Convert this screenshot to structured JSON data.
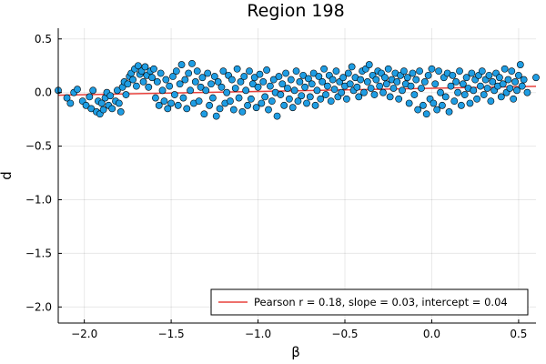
{
  "chart_data": {
    "type": "scatter",
    "title": "Region 198",
    "xlabel": "β",
    "ylabel": "d",
    "xlim": [
      -2.15,
      0.6
    ],
    "ylim": [
      -2.15,
      0.6
    ],
    "x_ticks": [
      -2.0,
      -1.5,
      -1.0,
      -0.5,
      0.0,
      0.5
    ],
    "x_tick_labels": [
      "−2.0",
      "−1.5",
      "−1.0",
      "−0.5",
      "0.0",
      "0.5"
    ],
    "y_ticks": [
      -2.0,
      -1.5,
      -1.0,
      -0.5,
      0.0,
      0.5
    ],
    "y_tick_labels": [
      "−2.0",
      "−1.5",
      "−1.0",
      "−0.5",
      "0.0",
      "0.5"
    ],
    "grid": true,
    "legend_position": "bottom-right",
    "point_color": "#1f9de3",
    "line_color": "#e8413c",
    "series": [
      {
        "type": "scatter",
        "points": [
          [
            -2.15,
            0.02
          ],
          [
            -2.1,
            -0.05
          ],
          [
            -2.08,
            -0.1
          ],
          [
            -2.06,
            0.0
          ],
          [
            -2.04,
            0.03
          ],
          [
            -2.01,
            -0.08
          ],
          [
            -1.99,
            -0.12
          ],
          [
            -1.97,
            -0.04
          ],
          [
            -1.96,
            -0.15
          ],
          [
            -1.95,
            0.02
          ],
          [
            -1.93,
            -0.18
          ],
          [
            -1.92,
            -0.08
          ],
          [
            -1.91,
            -0.2
          ],
          [
            -1.9,
            -0.1
          ],
          [
            -1.89,
            -0.16
          ],
          [
            -1.88,
            -0.05
          ],
          [
            -1.87,
            0.0
          ],
          [
            -1.86,
            -0.12
          ],
          [
            -1.85,
            -0.03
          ],
          [
            -1.84,
            -0.15
          ],
          [
            -1.82,
            -0.08
          ],
          [
            -1.81,
            0.02
          ],
          [
            -1.8,
            -0.1
          ],
          [
            -1.79,
            -0.18
          ],
          [
            -1.78,
            0.05
          ],
          [
            -1.77,
            0.1
          ],
          [
            -1.76,
            -0.02
          ],
          [
            -1.75,
            0.08
          ],
          [
            -1.74,
            0.15
          ],
          [
            -1.73,
            0.18
          ],
          [
            -1.72,
            0.12
          ],
          [
            -1.71,
            0.22
          ],
          [
            -1.7,
            0.06
          ],
          [
            -1.69,
            0.25
          ],
          [
            -1.68,
            0.17
          ],
          [
            -1.67,
            0.2
          ],
          [
            -1.66,
            0.1
          ],
          [
            -1.65,
            0.24
          ],
          [
            -1.64,
            0.16
          ],
          [
            -1.63,
            0.05
          ],
          [
            -1.62,
            0.2
          ],
          [
            -1.61,
            0.14
          ],
          [
            -1.6,
            0.22
          ],
          [
            -1.59,
            -0.05
          ],
          [
            -1.58,
            0.1
          ],
          [
            -1.57,
            -0.12
          ],
          [
            -1.56,
            0.18
          ],
          [
            -1.55,
            0.02
          ],
          [
            -1.54,
            -0.08
          ],
          [
            -1.53,
            0.12
          ],
          [
            -1.52,
            -0.15
          ],
          [
            -1.51,
            0.06
          ],
          [
            -1.5,
            -0.1
          ],
          [
            -1.49,
            0.15
          ],
          [
            -1.48,
            -0.02
          ],
          [
            -1.47,
            0.2
          ],
          [
            -1.46,
            -0.12
          ],
          [
            -1.45,
            0.08
          ],
          [
            -1.44,
            0.26
          ],
          [
            -1.43,
            -0.05
          ],
          [
            -1.42,
            0.12
          ],
          [
            -1.41,
            -0.15
          ],
          [
            -1.4,
            0.18
          ],
          [
            -1.39,
            0.02
          ],
          [
            -1.38,
            0.27
          ],
          [
            -1.37,
            -0.1
          ],
          [
            -1.36,
            0.1
          ],
          [
            -1.35,
            0.2
          ],
          [
            -1.34,
            -0.08
          ],
          [
            -1.33,
            0.05
          ],
          [
            -1.32,
            0.14
          ],
          [
            -1.31,
            -0.2
          ],
          [
            -1.3,
            0.02
          ],
          [
            -1.29,
            0.18
          ],
          [
            -1.28,
            -0.12
          ],
          [
            -1.27,
            0.08
          ],
          [
            -1.26,
            -0.05
          ],
          [
            -1.25,
            0.15
          ],
          [
            -1.24,
            -0.22
          ],
          [
            -1.23,
            0.1
          ],
          [
            -1.22,
            -0.15
          ],
          [
            -1.21,
            0.05
          ],
          [
            -1.2,
            0.2
          ],
          [
            -1.19,
            -0.1
          ],
          [
            -1.18,
            0.0
          ],
          [
            -1.17,
            0.16
          ],
          [
            -1.16,
            -0.08
          ],
          [
            -1.15,
            0.12
          ],
          [
            -1.14,
            -0.16
          ],
          [
            -1.13,
            0.04
          ],
          [
            -1.12,
            0.22
          ],
          [
            -1.11,
            -0.05
          ],
          [
            -1.1,
            0.1
          ],
          [
            -1.09,
            -0.18
          ],
          [
            -1.08,
            0.15
          ],
          [
            -1.07,
            0.02
          ],
          [
            -1.06,
            -0.12
          ],
          [
            -1.05,
            0.2
          ],
          [
            -1.04,
            -0.06
          ],
          [
            -1.03,
            0.08
          ],
          [
            -1.02,
            0.14
          ],
          [
            -1.01,
            -0.14
          ],
          [
            -1.0,
            0.05
          ],
          [
            -0.99,
            0.17
          ],
          [
            -0.98,
            -0.1
          ],
          [
            -0.97,
            0.1
          ],
          [
            -0.96,
            -0.04
          ],
          [
            -0.95,
            0.21
          ],
          [
            -0.94,
            -0.16
          ],
          [
            -0.93,
            0.06
          ],
          [
            -0.92,
            -0.08
          ],
          [
            -0.91,
            0.12
          ],
          [
            -0.9,
            0.0
          ],
          [
            -0.89,
            -0.22
          ],
          [
            -0.88,
            0.15
          ],
          [
            -0.87,
            -0.02
          ],
          [
            -0.86,
            0.08
          ],
          [
            -0.85,
            -0.12
          ],
          [
            -0.84,
            0.18
          ],
          [
            -0.83,
            0.04
          ],
          [
            -0.82,
            -0.06
          ],
          [
            -0.81,
            0.12
          ],
          [
            -0.8,
            -0.14
          ],
          [
            -0.79,
            0.02
          ],
          [
            -0.78,
            0.2
          ],
          [
            -0.77,
            -0.08
          ],
          [
            -0.76,
            0.1
          ],
          [
            -0.75,
            -0.03
          ],
          [
            -0.74,
            0.16
          ],
          [
            -0.73,
            0.05
          ],
          [
            -0.72,
            -0.1
          ],
          [
            -0.71,
            0.13
          ],
          [
            -0.7,
            -0.04
          ],
          [
            -0.69,
            0.08
          ],
          [
            -0.68,
            0.18
          ],
          [
            -0.67,
            -0.12
          ],
          [
            -0.66,
            0.02
          ],
          [
            -0.65,
            0.15
          ],
          [
            -0.64,
            -0.06
          ],
          [
            -0.63,
            0.1
          ],
          [
            -0.62,
            0.22
          ],
          [
            -0.61,
            -0.02
          ],
          [
            -0.6,
            0.06
          ],
          [
            -0.59,
            0.16
          ],
          [
            -0.58,
            -0.08
          ],
          [
            -0.57,
            0.12
          ],
          [
            -0.56,
            0.03
          ],
          [
            -0.55,
            0.2
          ],
          [
            -0.54,
            -0.04
          ],
          [
            -0.53,
            0.1
          ],
          [
            -0.52,
            0.0
          ],
          [
            -0.51,
            0.14
          ],
          [
            -0.5,
            0.06
          ],
          [
            -0.49,
            -0.06
          ],
          [
            -0.48,
            0.18
          ],
          [
            -0.47,
            0.08
          ],
          [
            -0.46,
            0.24
          ],
          [
            -0.45,
            0.02
          ],
          [
            -0.44,
            0.14
          ],
          [
            -0.43,
            0.05
          ],
          [
            -0.42,
            -0.04
          ],
          [
            -0.41,
            0.12
          ],
          [
            -0.4,
            0.2
          ],
          [
            -0.39,
            0.0
          ],
          [
            -0.38,
            0.22
          ],
          [
            -0.37,
            0.1
          ],
          [
            -0.36,
            0.26
          ],
          [
            -0.35,
            0.04
          ],
          [
            -0.34,
            0.16
          ],
          [
            -0.33,
            -0.02
          ],
          [
            -0.32,
            0.12
          ],
          [
            -0.31,
            0.2
          ],
          [
            -0.3,
            0.06
          ],
          [
            -0.29,
            0.18
          ],
          [
            -0.28,
            0.0
          ],
          [
            -0.27,
            0.14
          ],
          [
            -0.26,
            0.08
          ],
          [
            -0.25,
            0.22
          ],
          [
            -0.24,
            -0.04
          ],
          [
            -0.23,
            0.12
          ],
          [
            -0.22,
            0.04
          ],
          [
            -0.21,
            0.18
          ],
          [
            -0.2,
            0.1
          ],
          [
            -0.19,
            -0.06
          ],
          [
            -0.18,
            0.16
          ],
          [
            -0.17,
            0.02
          ],
          [
            -0.16,
            0.2
          ],
          [
            -0.15,
            0.08
          ],
          [
            -0.14,
            0.14
          ],
          [
            -0.13,
            -0.1
          ],
          [
            -0.12,
            0.06
          ],
          [
            -0.11,
            0.18
          ],
          [
            -0.1,
            -0.02
          ],
          [
            -0.09,
            0.12
          ],
          [
            -0.08,
            -0.16
          ],
          [
            -0.07,
            0.2
          ],
          [
            -0.06,
            0.04
          ],
          [
            -0.05,
            -0.12
          ],
          [
            -0.04,
            0.1
          ],
          [
            -0.03,
            -0.2
          ],
          [
            -0.02,
            0.16
          ],
          [
            -0.01,
            -0.06
          ],
          [
            0.0,
            0.22
          ],
          [
            0.01,
            -0.1
          ],
          [
            0.02,
            0.08
          ],
          [
            0.03,
            -0.16
          ],
          [
            0.04,
            0.2
          ],
          [
            0.05,
            0.0
          ],
          [
            0.06,
            -0.12
          ],
          [
            0.07,
            0.14
          ],
          [
            0.08,
            -0.04
          ],
          [
            0.09,
            0.18
          ],
          [
            0.1,
            -0.18
          ],
          [
            0.11,
            0.06
          ],
          [
            0.12,
            0.16
          ],
          [
            0.13,
            -0.08
          ],
          [
            0.14,
            0.1
          ],
          [
            0.15,
            0.0
          ],
          [
            0.16,
            0.2
          ],
          [
            0.17,
            -0.12
          ],
          [
            0.18,
            0.08
          ],
          [
            0.19,
            -0.02
          ],
          [
            0.2,
            0.14
          ],
          [
            0.21,
            0.04
          ],
          [
            0.22,
            -0.1
          ],
          [
            0.23,
            0.18
          ],
          [
            0.24,
            0.02
          ],
          [
            0.25,
            0.12
          ],
          [
            0.26,
            -0.06
          ],
          [
            0.27,
            0.16
          ],
          [
            0.28,
            0.06
          ],
          [
            0.29,
            0.2
          ],
          [
            0.3,
            -0.02
          ],
          [
            0.31,
            0.12
          ],
          [
            0.32,
            0.04
          ],
          [
            0.33,
            0.16
          ],
          [
            0.34,
            -0.08
          ],
          [
            0.35,
            0.1
          ],
          [
            0.36,
            0.02
          ],
          [
            0.37,
            0.18
          ],
          [
            0.38,
            0.06
          ],
          [
            0.39,
            0.14
          ],
          [
            0.4,
            -0.04
          ],
          [
            0.41,
            0.08
          ],
          [
            0.42,
            0.22
          ],
          [
            0.43,
            0.0
          ],
          [
            0.44,
            0.12
          ],
          [
            0.45,
            0.04
          ],
          [
            0.46,
            0.2
          ],
          [
            0.47,
            -0.06
          ],
          [
            0.48,
            0.1
          ],
          [
            0.49,
            0.02
          ],
          [
            0.5,
            0.16
          ],
          [
            0.51,
            0.26
          ],
          [
            0.52,
            0.06
          ],
          [
            0.53,
            0.12
          ],
          [
            0.55,
            0.0
          ],
          [
            0.6,
            0.14
          ]
        ]
      },
      {
        "type": "line",
        "name": "Pearson r = 0.18, slope = 0.03, intercept = 0.04",
        "slope": 0.03,
        "intercept": 0.04
      }
    ]
  }
}
